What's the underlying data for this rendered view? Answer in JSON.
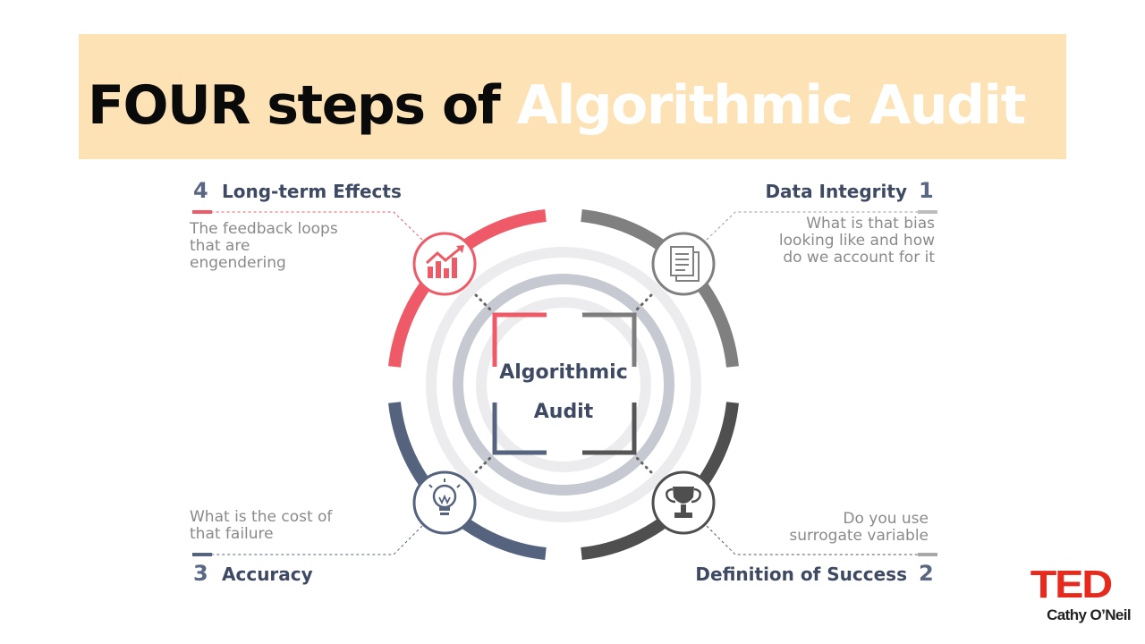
{
  "title": {
    "part1": "FOUR steps of ",
    "part2": "Algorithmic Audit"
  },
  "center": {
    "line1": "Algorithmic",
    "line2": "Audit"
  },
  "steps": [
    {
      "number": "1",
      "heading": "Data Integrity",
      "description": [
        "What is that bias",
        "looking like and how",
        "do we account for it"
      ],
      "icon": "document-icon",
      "color": "#808080"
    },
    {
      "number": "2",
      "heading": "Definition of Success",
      "description": [
        "Do you use",
        "surrogate variable"
      ],
      "icon": "trophy-icon",
      "color": "#4f4f4f"
    },
    {
      "number": "3",
      "heading": "Accuracy",
      "description": [
        "What is the cost of",
        "that failure"
      ],
      "icon": "lightbulb-icon",
      "color": "#56637f"
    },
    {
      "number": "4",
      "heading": "Long-term Effects",
      "description": [
        "The feedback loops",
        "that are",
        "engendering"
      ],
      "icon": "growth-chart-icon",
      "color": "#ee5a68"
    }
  ],
  "branding": {
    "logo": "TED",
    "speaker": "Cathy O’Neil"
  }
}
